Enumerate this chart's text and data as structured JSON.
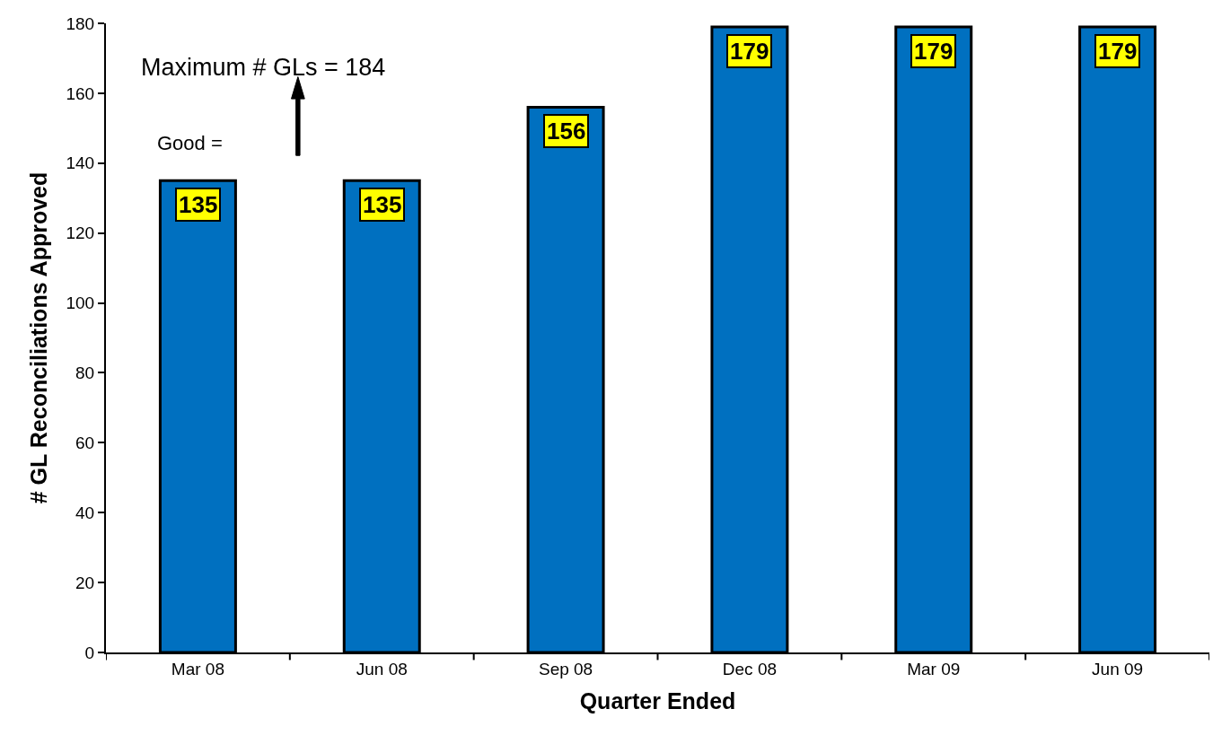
{
  "chart_data": {
    "type": "bar",
    "xlabel": "Quarter Ended",
    "ylabel": "# GL Reconciliations Approved",
    "categories": [
      "Mar 08",
      "Jun 08",
      "Sep 08",
      "Dec 08",
      "Mar 09",
      "Jun 09"
    ],
    "values": [
      135,
      135,
      156,
      179,
      179,
      179
    ],
    "color": "#0070c0",
    "ylim": [
      0,
      180
    ],
    "yticks": [
      0,
      20,
      40,
      60,
      80,
      100,
      120,
      140,
      160,
      180
    ],
    "data_labels": true,
    "annotations": [
      "Maximum # GLs = 184",
      "Good ="
    ]
  }
}
